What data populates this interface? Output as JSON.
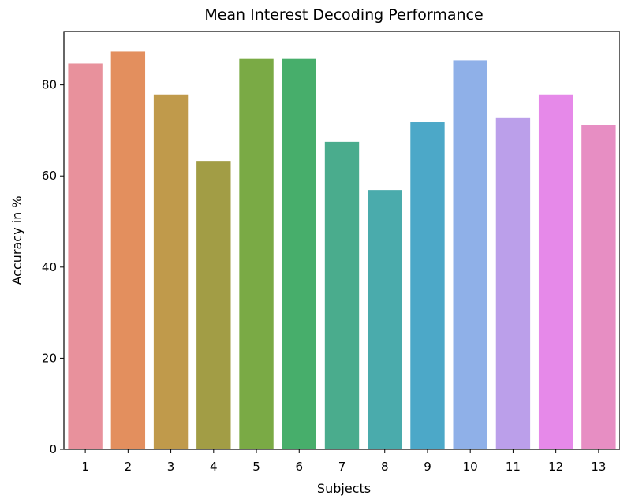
{
  "chart_data": {
    "type": "bar",
    "title": "Mean Interest Decoding Performance",
    "xlabel": "Subjects",
    "ylabel": "Accuracy in %",
    "categories": [
      "1",
      "2",
      "3",
      "4",
      "5",
      "6",
      "7",
      "8",
      "9",
      "10",
      "11",
      "12",
      "13"
    ],
    "values": [
      84.7,
      87.3,
      77.9,
      63.3,
      85.7,
      85.7,
      67.5,
      56.9,
      71.8,
      85.4,
      72.7,
      77.9,
      71.2
    ],
    "colors": [
      "#e8919c",
      "#e38f5e",
      "#c09a4b",
      "#a29d45",
      "#7aaa45",
      "#47ae6b",
      "#4aac8d",
      "#4aabac",
      "#4ca8c8",
      "#8fb0e8",
      "#bb9fea",
      "#e689e9",
      "#e78ec3"
    ],
    "yticks": [
      0,
      20,
      40,
      60,
      80
    ],
    "ylim": [
      0,
      91.7
    ],
    "grid": false,
    "legend": "none"
  }
}
